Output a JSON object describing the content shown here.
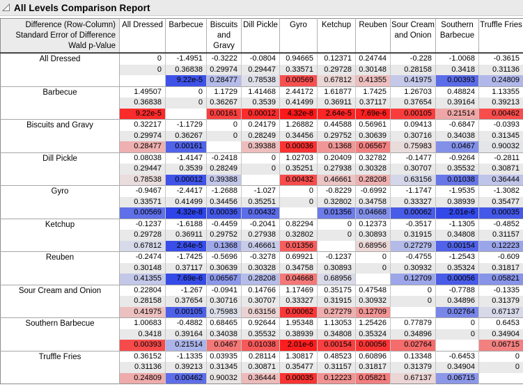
{
  "window": {
    "title": "All Levels Comparison Report"
  },
  "colors": {
    "titlebar_bg": "#eaeaea",
    "se_row_bg": "#e9e9e9",
    "neutral_cell": "#e9e9e9",
    "positive_diff_max": "#fc1616",
    "negative_diff_max": "#2b42e8",
    "header_rule": "#454545"
  },
  "table": {
    "corner_lines": [
      "Difference (Row-Column)",
      "Standard Error of Difference",
      "Wald p-Value"
    ],
    "columns": [
      "All Dressed",
      "Barbecue",
      "Biscuits and Gravy",
      "Dill Pickle",
      "Gyro",
      "Ketchup",
      "Reuben",
      "Sour Cream and Onion",
      "Southern Barbecue",
      "Truffle Fries"
    ],
    "groups": [
      {
        "label": "All Dressed",
        "difference": [
          "0",
          "-1.4951",
          "-0.3222",
          "-0.0804",
          "0.94665",
          "0.12371",
          "0.24744",
          "-0.228",
          "-1.0068",
          "-0.3615"
        ],
        "std_error": [
          "0",
          "0.36838",
          "0.29974",
          "0.29447",
          "0.33571",
          "0.29728",
          "0.30148",
          "0.28158",
          "0.3418",
          "0.31136"
        ],
        "wald_p": [
          "",
          "9.22e-5",
          "0.28477",
          "0.78538",
          "0.00569",
          "0.67812",
          "0.41355",
          "0.41975",
          "0.00393",
          "0.24809"
        ]
      },
      {
        "label": "Barbecue",
        "difference": [
          "1.49507",
          "0",
          "1.1729",
          "1.41468",
          "2.44172",
          "1.61877",
          "1.7425",
          "1.26703",
          "0.48824",
          "1.13355"
        ],
        "std_error": [
          "0.36838",
          "0",
          "0.36267",
          "0.3539",
          "0.41499",
          "0.36911",
          "0.37117",
          "0.37654",
          "0.39164",
          "0.39213"
        ],
        "wald_p": [
          "9.22e-5",
          "",
          "0.00161",
          "0.00012",
          "4.32e-8",
          "2.64e-5",
          "7.69e-6",
          "0.00105",
          "0.21514",
          "0.00462"
        ]
      },
      {
        "label": "Biscuits and Gravy",
        "difference": [
          "0.32217",
          "-1.1729",
          "0",
          "0.24179",
          "1.26882",
          "0.44588",
          "0.56961",
          "0.09413",
          "-0.6847",
          "-0.0393"
        ],
        "std_error": [
          "0.29974",
          "0.36267",
          "0",
          "0.28249",
          "0.34456",
          "0.29752",
          "0.30639",
          "0.30716",
          "0.34038",
          "0.31345"
        ],
        "wald_p": [
          "0.28477",
          "0.00161",
          "",
          "0.39388",
          "0.00036",
          "0.1368",
          "0.06567",
          "0.75983",
          "0.0467",
          "0.90032"
        ]
      },
      {
        "label": "Dill Pickle",
        "difference": [
          "0.08038",
          "-1.4147",
          "-0.2418",
          "0",
          "1.02703",
          "0.20409",
          "0.32782",
          "-0.1477",
          "-0.9264",
          "-0.2811"
        ],
        "std_error": [
          "0.29447",
          "0.3539",
          "0.28249",
          "0",
          "0.35251",
          "0.27938",
          "0.30328",
          "0.30707",
          "0.35532",
          "0.30871"
        ],
        "wald_p": [
          "0.78538",
          "0.00012",
          "0.39388",
          "",
          "0.00432",
          "0.46661",
          "0.28208",
          "0.63156",
          "0.01038",
          "0.36444"
        ]
      },
      {
        "label": "Gyro",
        "difference": [
          "-0.9467",
          "-2.4417",
          "-1.2688",
          "-1.027",
          "0",
          "-0.8229",
          "-0.6992",
          "-1.1747",
          "-1.9535",
          "-1.3082"
        ],
        "std_error": [
          "0.33571",
          "0.41499",
          "0.34456",
          "0.35251",
          "0",
          "0.32802",
          "0.34758",
          "0.33327",
          "0.38939",
          "0.35477"
        ],
        "wald_p": [
          "0.00569",
          "4.32e-8",
          "0.00036",
          "0.00432",
          "",
          "0.01356",
          "0.04668",
          "0.00062",
          "2.01e-6",
          "0.00035"
        ]
      },
      {
        "label": "Ketchup",
        "difference": [
          "-0.1237",
          "-1.6188",
          "-0.4459",
          "-0.2041",
          "0.82294",
          "0",
          "0.12373",
          "-0.3517",
          "-1.1305",
          "-0.4852"
        ],
        "std_error": [
          "0.29728",
          "0.36911",
          "0.29752",
          "0.27938",
          "0.32802",
          "0",
          "0.30893",
          "0.31915",
          "0.34808",
          "0.31157"
        ],
        "wald_p": [
          "0.67812",
          "2.64e-5",
          "0.1368",
          "0.46661",
          "0.01356",
          "",
          "0.68956",
          "0.27279",
          "0.00154",
          "0.12223"
        ]
      },
      {
        "label": "Reuben",
        "difference": [
          "-0.2474",
          "-1.7425",
          "-0.5696",
          "-0.3278",
          "0.69921",
          "-0.1237",
          "0",
          "-0.4755",
          "-1.2543",
          "-0.609"
        ],
        "std_error": [
          "0.30148",
          "0.37117",
          "0.30639",
          "0.30328",
          "0.34758",
          "0.30893",
          "0",
          "0.30932",
          "0.35324",
          "0.31817"
        ],
        "wald_p": [
          "0.41355",
          "7.69e-6",
          "0.06567",
          "0.28208",
          "0.04668",
          "0.68956",
          "",
          "0.12709",
          "0.00056",
          "0.05821"
        ]
      },
      {
        "label": "Sour Cream and Onion",
        "difference": [
          "0.22804",
          "-1.267",
          "-0.0941",
          "0.14766",
          "1.17469",
          "0.35175",
          "0.47548",
          "0",
          "-0.7788",
          "-0.1335"
        ],
        "std_error": [
          "0.28158",
          "0.37654",
          "0.30716",
          "0.30707",
          "0.33327",
          "0.31915",
          "0.30932",
          "0",
          "0.34896",
          "0.31379"
        ],
        "wald_p": [
          "0.41975",
          "0.00105",
          "0.75983",
          "0.63156",
          "0.00062",
          "0.27279",
          "0.12709",
          "",
          "0.02764",
          "0.67137"
        ]
      },
      {
        "label": "Southern Barbecue",
        "difference": [
          "1.00683",
          "-0.4882",
          "0.68465",
          "0.92644",
          "1.95348",
          "1.13053",
          "1.25426",
          "0.77879",
          "0",
          "0.6453"
        ],
        "std_error": [
          "0.3418",
          "0.39164",
          "0.34038",
          "0.35532",
          "0.38939",
          "0.34808",
          "0.35324",
          "0.34896",
          "0",
          "0.34904"
        ],
        "wald_p": [
          "0.00393",
          "0.21514",
          "0.0467",
          "0.01038",
          "2.01e-6",
          "0.00154",
          "0.00056",
          "0.02764",
          "",
          "0.06715"
        ]
      },
      {
        "label": "Truffle Fries",
        "difference": [
          "0.36152",
          "-1.1335",
          "0.03935",
          "0.28114",
          "1.30817",
          "0.48523",
          "0.60896",
          "0.13348",
          "-0.6453",
          "0"
        ],
        "std_error": [
          "0.31136",
          "0.39213",
          "0.31345",
          "0.30871",
          "0.35477",
          "0.31157",
          "0.31817",
          "0.31379",
          "0.34904",
          "0"
        ],
        "wald_p": [
          "0.24809",
          "0.00462",
          "0.90032",
          "0.36444",
          "0.00035",
          "0.12223",
          "0.05821",
          "0.67137",
          "0.06715",
          ""
        ]
      }
    ]
  }
}
